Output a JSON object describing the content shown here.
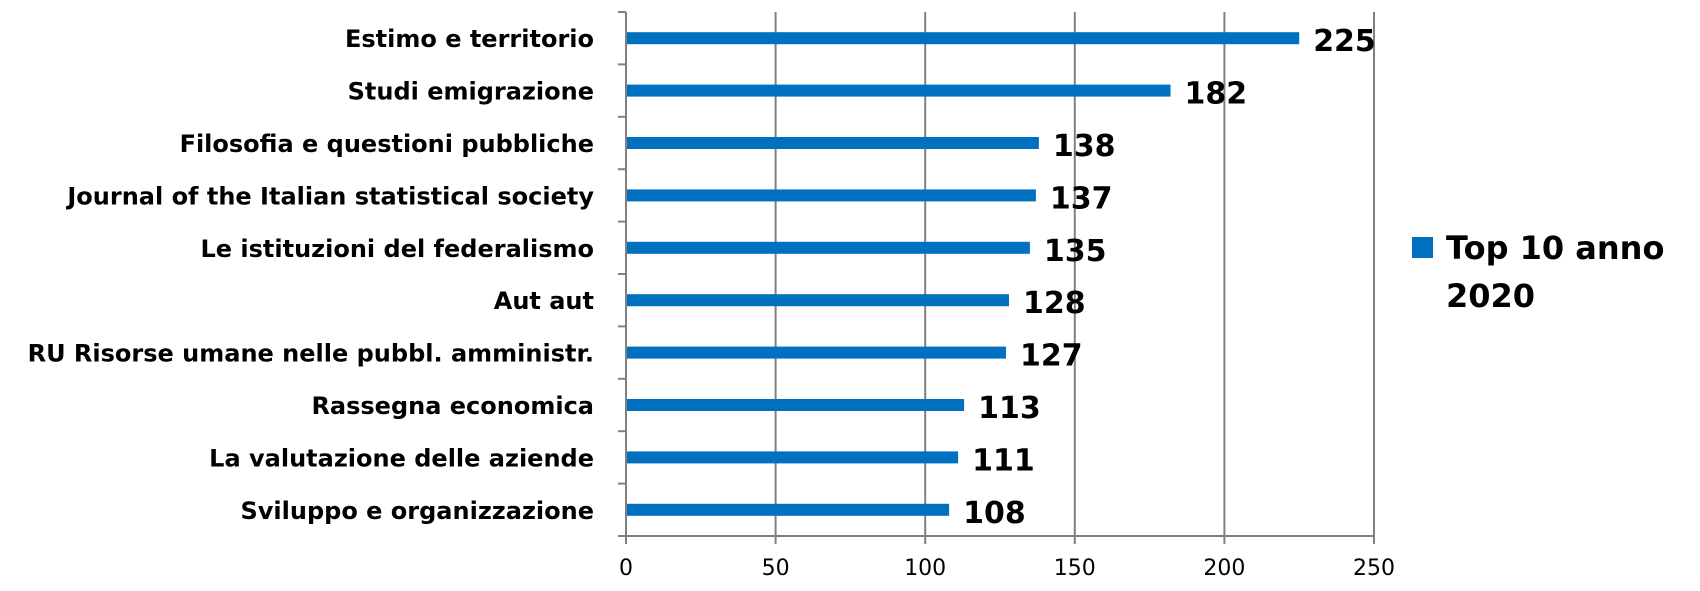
{
  "chart_data": {
    "type": "bar",
    "orientation": "horizontal",
    "categories": [
      "Estimo e territorio",
      "Studi emigrazione",
      "Filosofia e questioni pubbliche",
      "Journal of the Italian statistical society",
      "Le istituzioni del federalismo",
      "Aut aut",
      "RU Risorse umane nelle pubbl. amministr.",
      "Rassegna economica",
      "La valutazione delle aziende",
      "Sviluppo e organizzazione"
    ],
    "series": [
      {
        "name": "Top 10 anno 2020",
        "values": [
          225,
          182,
          138,
          137,
          135,
          128,
          127,
          113,
          111,
          108
        ]
      }
    ],
    "data_labels": [
      "225",
      "182",
      "138",
      "137",
      "135",
      "128",
      "127",
      "113",
      "111",
      "108"
    ],
    "xlim": [
      0,
      250
    ],
    "xticks": [
      0,
      50,
      100,
      150,
      200,
      250
    ],
    "xtick_labels": [
      "0",
      "50",
      "100",
      "150",
      "200",
      "250"
    ],
    "grid": "vertical",
    "legend_position": "right",
    "legend": {
      "line1": "Top 10 anno",
      "line2": "2020"
    },
    "colors": {
      "bar": "#0070C0",
      "grid": "#808080",
      "axis": "#808080",
      "text": "#000000"
    }
  }
}
